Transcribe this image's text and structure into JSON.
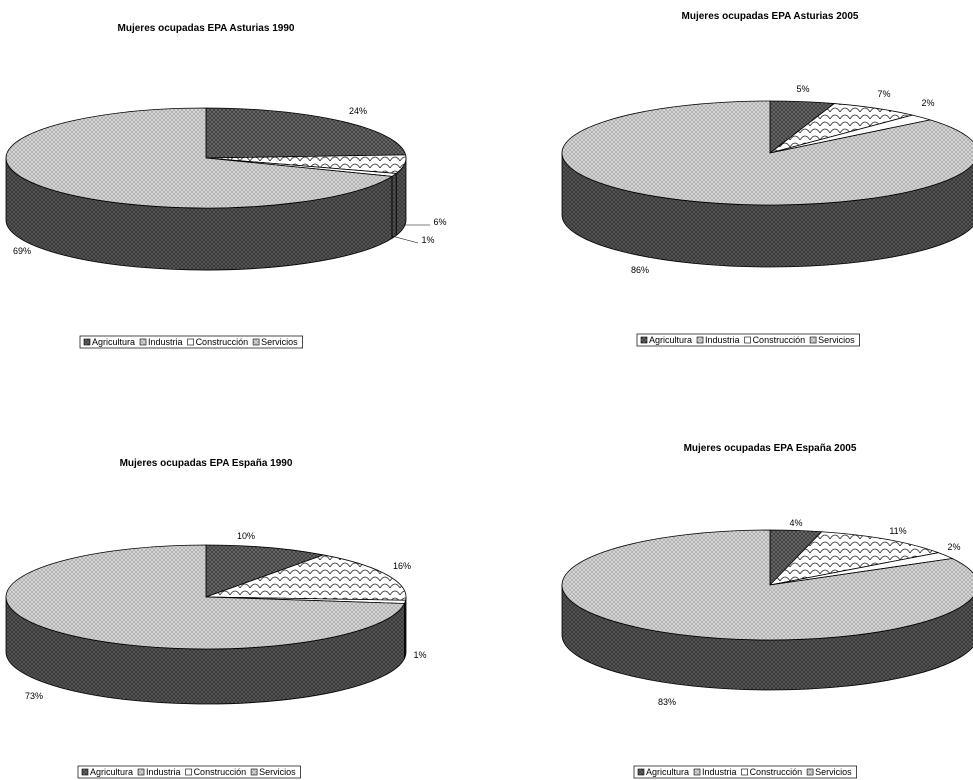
{
  "categories": [
    "Agricultura",
    "Industria",
    "Construcción",
    "Servicios"
  ],
  "chart_data": [
    {
      "type": "pie",
      "title": "Mujeres ocupadas EPA Asturias 1990",
      "categories": [
        "Agricultura",
        "Industria",
        "Construcción",
        "Servicios"
      ],
      "values": [
        24,
        6,
        1,
        69
      ],
      "labels": [
        "24%",
        "6%",
        "1%",
        "69%"
      ],
      "legend_position": "bottom"
    },
    {
      "type": "pie",
      "title": "Mujeres ocupadas EPA Asturias 2005",
      "categories": [
        "Agricultura",
        "Industria",
        "Construcción",
        "Servicios"
      ],
      "values": [
        5,
        7,
        2,
        86
      ],
      "labels": [
        "5%",
        "7%",
        "2%",
        "86%"
      ],
      "legend_position": "bottom"
    },
    {
      "type": "pie",
      "title": "Mujeres ocupadas EPA España 1990",
      "categories": [
        "Agricultura",
        "Industria",
        "Construcción",
        "Servicios"
      ],
      "values": [
        10,
        16,
        1,
        73
      ],
      "labels": [
        "10%",
        "16%",
        "1%",
        "73%"
      ],
      "legend_position": "bottom"
    },
    {
      "type": "pie",
      "title": "Mujeres ocupadas EPA España 2005",
      "categories": [
        "Agricultura",
        "Industria",
        "Construcción",
        "Servicios"
      ],
      "values": [
        4,
        11,
        2,
        83
      ],
      "labels": [
        "4%",
        "11%",
        "2%",
        "83%"
      ],
      "legend_position": "bottom"
    }
  ]
}
